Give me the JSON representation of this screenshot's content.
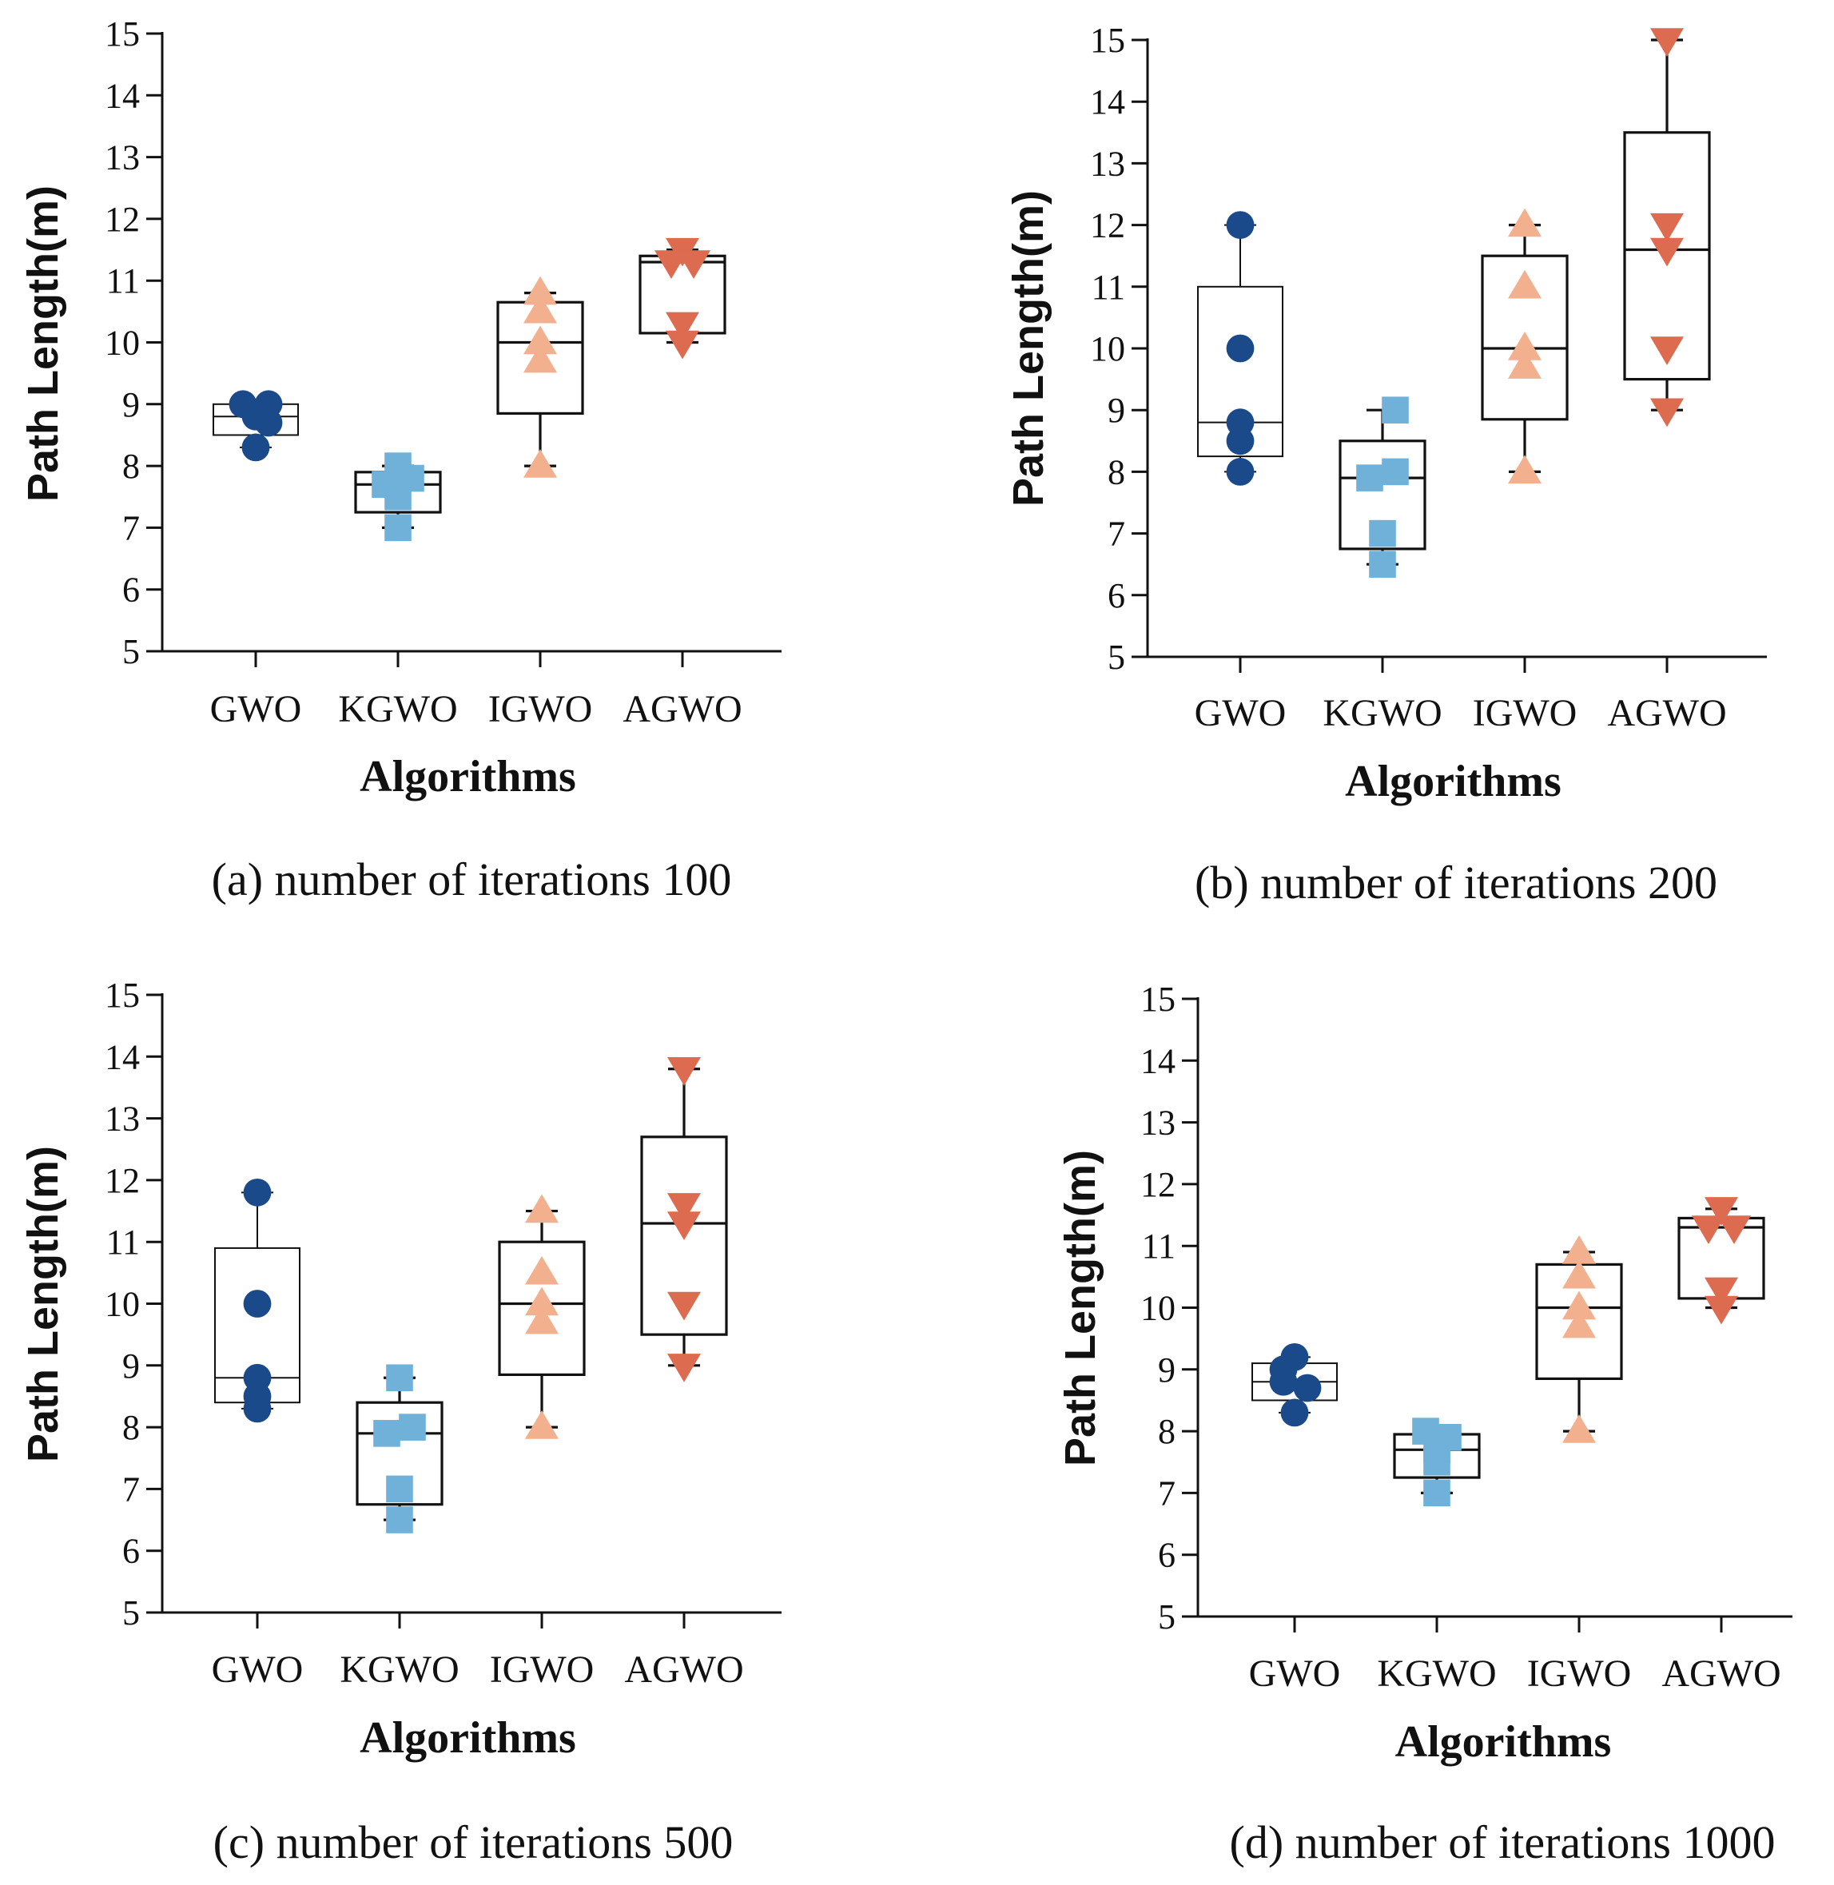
{
  "chart_data": [
    {
      "type": "box",
      "panel": "a",
      "caption": "(a) number of iterations 100",
      "xlabel": "Algorithms",
      "ylabel": "Path Length(m)",
      "ylim": [
        5,
        15
      ],
      "yticks": [
        "5",
        "6",
        "7",
        "8",
        "9",
        "10",
        "11",
        "12",
        "13",
        "14",
        "15"
      ],
      "categories": [
        "GWO",
        "KGWO",
        "IGWO",
        "AGWO"
      ],
      "boxes": [
        {
          "whisker_low": 8.3,
          "q1": 8.5,
          "median": 8.8,
          "q3": 9.0,
          "whisker_high": 9.0,
          "points": [
            9.0,
            9.0,
            8.8,
            8.7,
            8.3
          ]
        },
        {
          "whisker_low": 7.0,
          "q1": 7.25,
          "median": 7.7,
          "q3": 7.9,
          "whisker_high": 8.0,
          "points": [
            8.0,
            7.8,
            7.7,
            7.5,
            7.0
          ]
        },
        {
          "whisker_low": 8.0,
          "q1": 8.85,
          "median": 10.0,
          "q3": 10.65,
          "whisker_high": 10.8,
          "points": [
            10.8,
            10.5,
            10.0,
            9.7,
            8.0
          ]
        },
        {
          "whisker_low": 10.0,
          "q1": 10.15,
          "median": 11.3,
          "q3": 11.4,
          "whisker_high": 11.5,
          "points": [
            11.5,
            11.3,
            11.3,
            10.3,
            10.0
          ]
        }
      ]
    },
    {
      "type": "box",
      "panel": "b",
      "caption": "(b) number of iterations 200",
      "xlabel": "Algorithms",
      "ylabel": "Path Length(m)",
      "ylim": [
        5,
        15
      ],
      "yticks": [
        "5",
        "6",
        "7",
        "8",
        "9",
        "10",
        "11",
        "12",
        "13",
        "14",
        "15"
      ],
      "categories": [
        "GWO",
        "KGWO",
        "IGWO",
        "AGWO"
      ],
      "boxes": [
        {
          "whisker_low": 8.0,
          "q1": 8.25,
          "median": 8.8,
          "q3": 11.0,
          "whisker_high": 12.0,
          "points": [
            12.0,
            10.0,
            8.8,
            8.5,
            8.0
          ]
        },
        {
          "whisker_low": 6.5,
          "q1": 6.75,
          "median": 7.9,
          "q3": 8.5,
          "whisker_high": 9.0,
          "points": [
            9.0,
            8.0,
            7.9,
            7.0,
            6.5
          ]
        },
        {
          "whisker_low": 8.0,
          "q1": 8.85,
          "median": 10.0,
          "q3": 11.5,
          "whisker_high": 12.0,
          "points": [
            12.0,
            11.0,
            10.0,
            9.7,
            8.0
          ]
        },
        {
          "whisker_low": 9.0,
          "q1": 9.5,
          "median": 11.6,
          "q3": 13.5,
          "whisker_high": 15.0,
          "points": [
            15.0,
            12.0,
            11.6,
            10.0,
            9.0
          ]
        }
      ]
    },
    {
      "type": "box",
      "panel": "c",
      "caption": "(c) number of iterations 500",
      "xlabel": "Algorithms",
      "ylabel": "Path Length(m)",
      "ylim": [
        5,
        15
      ],
      "yticks": [
        "5",
        "6",
        "7",
        "8",
        "9",
        "10",
        "11",
        "12",
        "13",
        "14",
        "15"
      ],
      "categories": [
        "GWO",
        "KGWO",
        "IGWO",
        "AGWO"
      ],
      "boxes": [
        {
          "whisker_low": 8.3,
          "q1": 8.4,
          "median": 8.8,
          "q3": 10.9,
          "whisker_high": 11.8,
          "points": [
            11.8,
            10.0,
            8.8,
            8.5,
            8.3
          ]
        },
        {
          "whisker_low": 6.5,
          "q1": 6.75,
          "median": 7.9,
          "q3": 8.4,
          "whisker_high": 8.8,
          "points": [
            8.8,
            8.0,
            7.9,
            7.0,
            6.5
          ]
        },
        {
          "whisker_low": 8.0,
          "q1": 8.85,
          "median": 10.0,
          "q3": 11.0,
          "whisker_high": 11.5,
          "points": [
            11.5,
            10.5,
            10.0,
            9.7,
            8.0
          ]
        },
        {
          "whisker_low": 9.0,
          "q1": 9.5,
          "median": 11.3,
          "q3": 12.7,
          "whisker_high": 13.8,
          "points": [
            13.8,
            11.6,
            11.3,
            10.0,
            9.0
          ]
        }
      ]
    },
    {
      "type": "box",
      "panel": "d",
      "caption": "(d) number of iterations 1000",
      "xlabel": "Algorithms",
      "ylabel": "Path Length(m)",
      "ylim": [
        5,
        15
      ],
      "yticks": [
        "5",
        "6",
        "7",
        "8",
        "9",
        "10",
        "11",
        "12",
        "13",
        "14",
        "15"
      ],
      "categories": [
        "GWO",
        "KGWO",
        "IGWO",
        "AGWO"
      ],
      "boxes": [
        {
          "whisker_low": 8.3,
          "q1": 8.5,
          "median": 8.8,
          "q3": 9.1,
          "whisker_high": 9.2,
          "points": [
            9.2,
            9.0,
            8.8,
            8.7,
            8.3
          ]
        },
        {
          "whisker_low": 7.0,
          "q1": 7.25,
          "median": 7.7,
          "q3": 7.95,
          "whisker_high": 8.0,
          "points": [
            8.0,
            7.9,
            7.7,
            7.5,
            7.0
          ]
        },
        {
          "whisker_low": 8.0,
          "q1": 8.85,
          "median": 10.0,
          "q3": 10.7,
          "whisker_high": 10.9,
          "points": [
            10.9,
            10.5,
            10.0,
            9.7,
            8.0
          ]
        },
        {
          "whisker_low": 10.0,
          "q1": 10.15,
          "median": 11.3,
          "q3": 11.45,
          "whisker_high": 11.6,
          "points": [
            11.6,
            11.3,
            11.3,
            10.3,
            10.0
          ]
        }
      ]
    }
  ],
  "series_style": [
    {
      "name": "GWO",
      "marker": "circle",
      "color": "#1b4a8a"
    },
    {
      "name": "KGWO",
      "marker": "square",
      "color": "#6fb1d9"
    },
    {
      "name": "IGWO",
      "marker": "triangle-up",
      "color": "#f2b08f"
    },
    {
      "name": "AGWO",
      "marker": "triangle-down",
      "color": "#dd6b4f"
    }
  ]
}
